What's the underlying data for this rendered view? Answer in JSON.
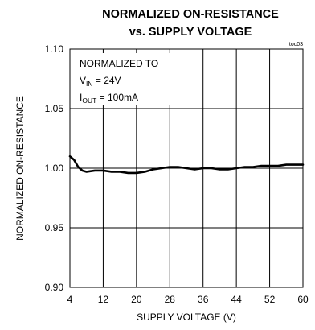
{
  "chart_data": {
    "type": "line",
    "title_line1": "NORMALIZED ON-RESISTANCE",
    "title_line2": "vs. SUPPLY VOLTAGE",
    "figure_code": "toc03",
    "xlabel": "SUPPLY VOLTAGE (V)",
    "ylabel": "NORMALIZED ON-RESISTANCE",
    "xlim": [
      4,
      60
    ],
    "ylim": [
      0.9,
      1.1
    ],
    "x_ticks": [
      "4",
      "12",
      "20",
      "28",
      "36",
      "44",
      "52",
      "60"
    ],
    "y_ticks": [
      "0.90",
      "0.95",
      "1.00",
      "1.05",
      "1.10"
    ],
    "grid": true,
    "annotation": {
      "line1": "NORMALIZED TO",
      "line2_main": "V",
      "line2_sub": "IN",
      "line2_rest": " = 24V",
      "line3_main": "I",
      "line3_sub": "OUT",
      "line3_rest": " = 100mA"
    },
    "series": [
      {
        "x": [
          4,
          5,
          6,
          7,
          8,
          10,
          12,
          14,
          16,
          18,
          20,
          22,
          24,
          26,
          28,
          30,
          32,
          34,
          36,
          38,
          40,
          42,
          44,
          46,
          48,
          50,
          52,
          54,
          56,
          58,
          60
        ],
        "y": [
          1.01,
          1.007,
          1.001,
          0.998,
          0.997,
          0.998,
          0.998,
          0.997,
          0.997,
          0.996,
          0.996,
          0.997,
          0.999,
          1.0,
          1.001,
          1.001,
          1.0,
          0.999,
          1.0,
          1.0,
          0.999,
          0.999,
          1.0,
          1.001,
          1.001,
          1.002,
          1.002,
          1.002,
          1.003,
          1.003,
          1.003
        ]
      }
    ]
  }
}
